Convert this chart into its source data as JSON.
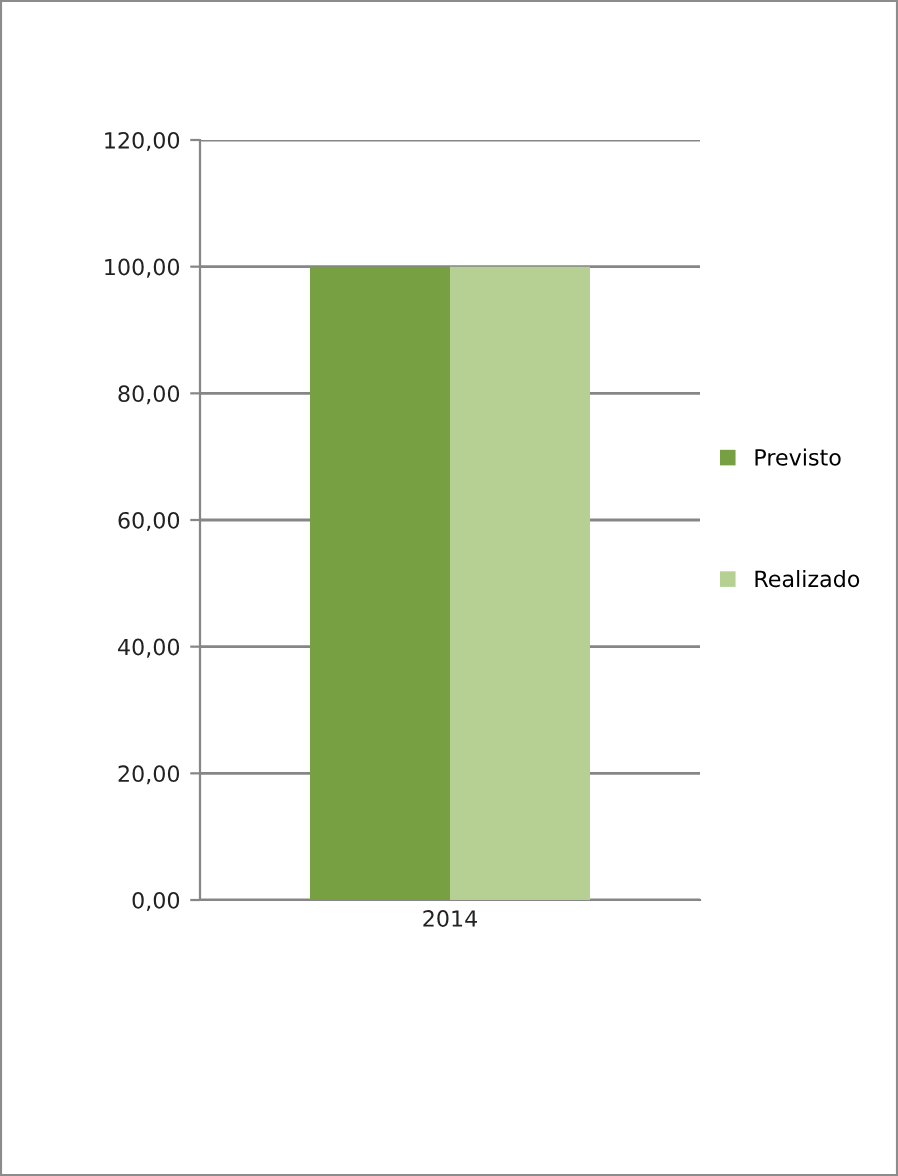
{
  "chart_data": {
    "type": "bar",
    "categories": [
      "2014"
    ],
    "series": [
      {
        "name": "Previsto",
        "color": "#77a043",
        "values": [
          100
        ]
      },
      {
        "name": "Realizado",
        "color": "#b5d092",
        "values": [
          100
        ]
      }
    ],
    "ylim": [
      0,
      120
    ],
    "yticks": [
      {
        "value": 0,
        "label": "0,00"
      },
      {
        "value": 20,
        "label": "20,00"
      },
      {
        "value": 40,
        "label": "40,00"
      },
      {
        "value": 60,
        "label": "60,00"
      },
      {
        "value": 80,
        "label": "80,00"
      },
      {
        "value": 100,
        "label": "100,00"
      },
      {
        "value": 120,
        "label": "120,00"
      }
    ],
    "grid": "y",
    "legend": "right"
  }
}
